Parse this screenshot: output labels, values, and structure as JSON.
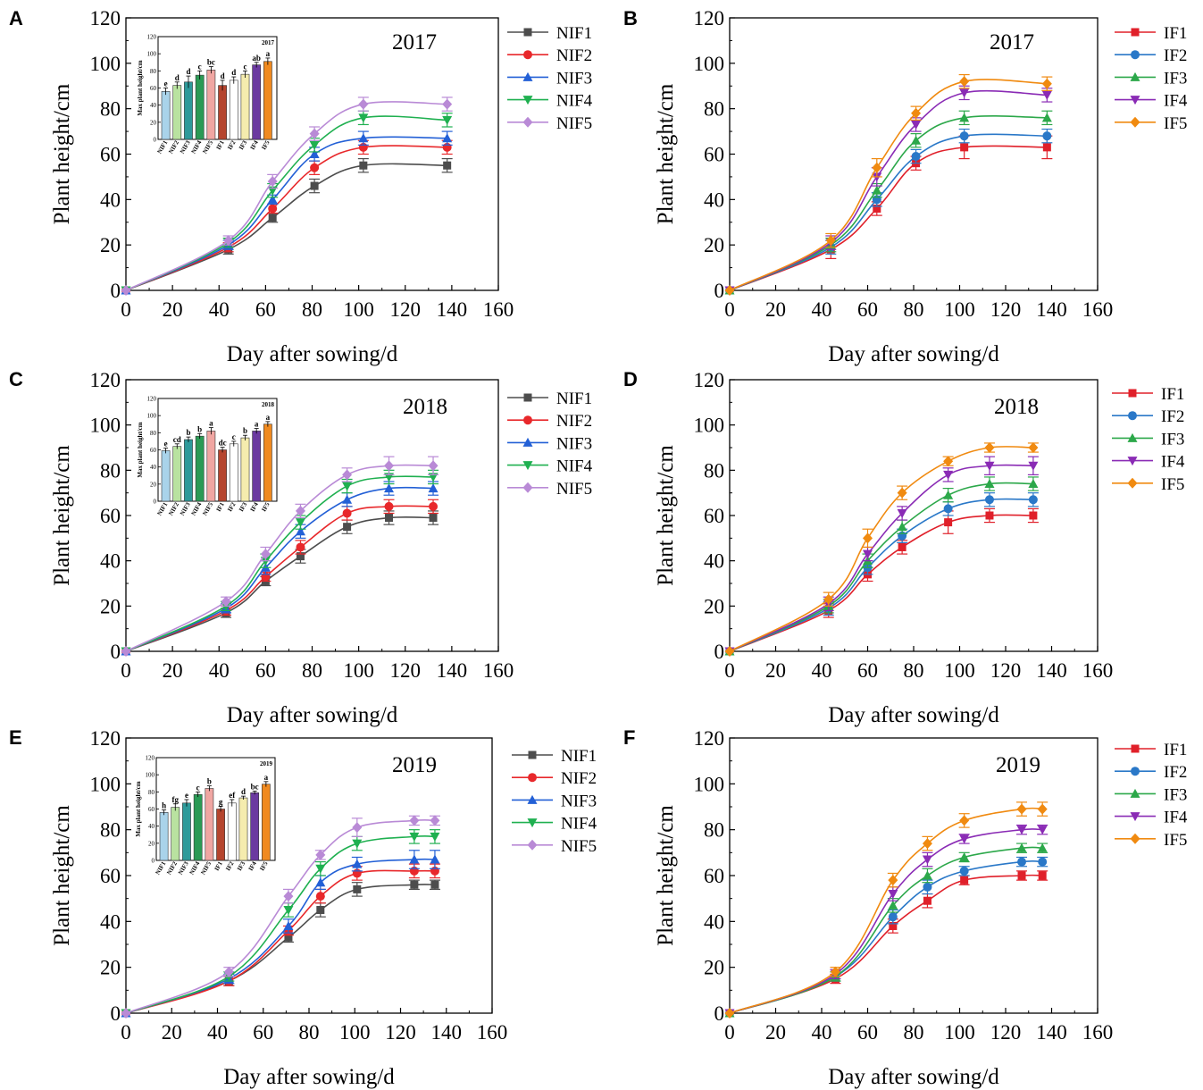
{
  "figure": {
    "panel_letters": [
      "A",
      "B",
      "C",
      "D",
      "E",
      "F"
    ]
  },
  "colors": {
    "NIF1": "#4d4d4d",
    "NIF2": "#e8282b",
    "NIF3": "#2360d6",
    "NIF4": "#1fb050",
    "NIF5": "#b98ad6",
    "IF1": "#e0202a",
    "IF2": "#2a78c8",
    "IF3": "#2ca84a",
    "IF4": "#8a2bb5",
    "IF5": "#f08a10",
    "inset_bars": [
      "#a9d3ea",
      "#b9e2a0",
      "#2e9a9a",
      "#2a9a55",
      "#f0a6a2",
      "#b5452e",
      "#ffffff",
      "#f5ecae",
      "#6b3aa0",
      "#f08a20"
    ]
  },
  "chart_data": [
    {
      "panel": "A",
      "type": "line",
      "title": "2017",
      "xlabel": "Day after sowing/d",
      "ylabel": "Plant height/cm",
      "xlim": [
        0,
        160
      ],
      "ylim": [
        0,
        120
      ],
      "xticks": [
        "0",
        "20",
        "40",
        "60",
        "80",
        "100",
        "120",
        "140",
        "160"
      ],
      "yticks": [
        "0",
        "20",
        "40",
        "60",
        "80",
        "100",
        "120"
      ],
      "x": [
        0,
        44,
        63,
        81,
        102,
        138
      ],
      "series": [
        {
          "name": "NIF1",
          "marker": "square",
          "values": [
            0,
            18,
            32,
            46,
            55,
            55
          ],
          "errors": [
            0,
            2,
            2,
            3,
            3,
            3
          ]
        },
        {
          "name": "NIF2",
          "marker": "circle",
          "values": [
            0,
            19,
            36,
            54,
            63,
            63
          ],
          "errors": [
            0,
            2,
            2,
            3,
            3,
            3
          ]
        },
        {
          "name": "NIF3",
          "marker": "triangle-up",
          "values": [
            0,
            20,
            40,
            60,
            67,
            67
          ],
          "errors": [
            0,
            2,
            2,
            3,
            3,
            3
          ]
        },
        {
          "name": "NIF4",
          "marker": "triangle-down",
          "values": [
            0,
            21,
            44,
            64,
            76,
            75
          ],
          "errors": [
            0,
            2,
            3,
            3,
            3,
            3
          ]
        },
        {
          "name": "NIF5",
          "marker": "diamond",
          "values": [
            0,
            22,
            48,
            69,
            82,
            82
          ],
          "errors": [
            0,
            2,
            3,
            3,
            3,
            3
          ]
        }
      ],
      "inset": {
        "title": "2017",
        "ylabel": "Max plant height/cm",
        "ylim": [
          0,
          120
        ],
        "yticks": [
          "0",
          "20",
          "40",
          "60",
          "80",
          "100",
          "120"
        ],
        "categories": [
          "NIF1",
          "NIF2",
          "NIF3",
          "NIF4",
          "NIF5",
          "IF1",
          "IF2",
          "IF3",
          "IF4",
          "IF5"
        ],
        "values": [
          56,
          63,
          67,
          75,
          81,
          63,
          69,
          76,
          87,
          91
        ],
        "errors": [
          4,
          4,
          7,
          5,
          4,
          6,
          4,
          4,
          3,
          4
        ],
        "letters": [
          "e",
          "d",
          "d",
          "c",
          "bc",
          "d",
          "d",
          "c",
          "ab",
          "a"
        ]
      }
    },
    {
      "panel": "B",
      "type": "line",
      "title": "2017",
      "xlabel": "Day after sowing/d",
      "ylabel": "Plant height/cm",
      "xlim": [
        0,
        160
      ],
      "ylim": [
        0,
        120
      ],
      "xticks": [
        "0",
        "20",
        "40",
        "60",
        "80",
        "100",
        "120",
        "140",
        "160"
      ],
      "yticks": [
        "0",
        "20",
        "40",
        "60",
        "80",
        "100",
        "120"
      ],
      "x": [
        0,
        44,
        64,
        81,
        102,
        138
      ],
      "series": [
        {
          "name": "IF1",
          "marker": "square",
          "values": [
            0,
            18,
            36,
            56,
            63,
            63
          ],
          "errors": [
            0,
            4,
            3,
            3,
            5,
            5
          ]
        },
        {
          "name": "IF2",
          "marker": "circle",
          "values": [
            0,
            19,
            40,
            59,
            68,
            68
          ],
          "errors": [
            0,
            3,
            3,
            3,
            3,
            3
          ]
        },
        {
          "name": "IF3",
          "marker": "triangle-up",
          "values": [
            0,
            20,
            44,
            66,
            76,
            76
          ],
          "errors": [
            0,
            3,
            3,
            3,
            3,
            3
          ]
        },
        {
          "name": "IF4",
          "marker": "triangle-down",
          "values": [
            0,
            21,
            50,
            73,
            87,
            86
          ],
          "errors": [
            0,
            3,
            4,
            3,
            3,
            3
          ]
        },
        {
          "name": "IF5",
          "marker": "diamond",
          "values": [
            0,
            22,
            54,
            78,
            92,
            91
          ],
          "errors": [
            0,
            3,
            4,
            3,
            3,
            3
          ]
        }
      ]
    },
    {
      "panel": "C",
      "type": "line",
      "title": "2018",
      "xlabel": "Day after sowing/d",
      "ylabel": "Plant height/cm",
      "xlim": [
        0,
        160
      ],
      "ylim": [
        0,
        120
      ],
      "xticks": [
        "0",
        "20",
        "40",
        "60",
        "80",
        "100",
        "120",
        "140",
        "160"
      ],
      "yticks": [
        "0",
        "20",
        "40",
        "60",
        "80",
        "100",
        "120"
      ],
      "x": [
        0,
        43,
        60,
        75,
        95,
        113,
        132
      ],
      "series": [
        {
          "name": "NIF1",
          "marker": "square",
          "values": [
            0,
            17,
            31,
            42,
            55,
            59,
            59
          ],
          "errors": [
            0,
            2,
            2,
            3,
            3,
            3,
            3
          ]
        },
        {
          "name": "NIF2",
          "marker": "circle",
          "values": [
            0,
            18,
            33,
            46,
            61,
            64,
            64
          ],
          "errors": [
            0,
            2,
            2,
            3,
            3,
            3,
            3
          ]
        },
        {
          "name": "NIF3",
          "marker": "triangle-up",
          "values": [
            0,
            19,
            37,
            53,
            67,
            72,
            72
          ],
          "errors": [
            0,
            2,
            3,
            3,
            3,
            3,
            3
          ]
        },
        {
          "name": "NIF4",
          "marker": "triangle-down",
          "values": [
            0,
            20,
            40,
            57,
            73,
            77,
            77
          ],
          "errors": [
            0,
            2,
            3,
            3,
            3,
            3,
            3
          ]
        },
        {
          "name": "NIF5",
          "marker": "diamond",
          "values": [
            0,
            22,
            43,
            62,
            78,
            82,
            82
          ],
          "errors": [
            0,
            2,
            3,
            3,
            3,
            4,
            4
          ]
        }
      ],
      "inset": {
        "title": "2018",
        "ylabel": "Max plant height/cm",
        "ylim": [
          0,
          120
        ],
        "yticks": [
          "0",
          "20",
          "40",
          "60",
          "80",
          "100",
          "120"
        ],
        "categories": [
          "NIF1",
          "NIF2",
          "NIF3",
          "NIF4",
          "NIF5",
          "IF1",
          "IF2",
          "IF3",
          "IF4",
          "IF5"
        ],
        "values": [
          59,
          64,
          72,
          76,
          82,
          60,
          67,
          74,
          82,
          90
        ],
        "errors": [
          3,
          3,
          3,
          3,
          4,
          3,
          3,
          3,
          3,
          3
        ],
        "letters": [
          "e",
          "cd",
          "b",
          "b",
          "a",
          "dc",
          "c",
          "b",
          "a",
          "a"
        ]
      }
    },
    {
      "panel": "D",
      "type": "line",
      "title": "2018",
      "xlabel": "Day after sowing/d",
      "ylabel": "Plant height/cm",
      "xlim": [
        0,
        160
      ],
      "ylim": [
        0,
        120
      ],
      "xticks": [
        "0",
        "20",
        "40",
        "60",
        "80",
        "100",
        "120",
        "140",
        "160"
      ],
      "yticks": [
        "0",
        "20",
        "40",
        "60",
        "80",
        "100",
        "120"
      ],
      "x": [
        0,
        43,
        60,
        75,
        95,
        113,
        132
      ],
      "series": [
        {
          "name": "IF1",
          "marker": "square",
          "values": [
            0,
            18,
            34,
            46,
            57,
            60,
            60
          ],
          "errors": [
            0,
            3,
            3,
            3,
            5,
            3,
            3
          ]
        },
        {
          "name": "IF2",
          "marker": "circle",
          "values": [
            0,
            19,
            37,
            51,
            63,
            67,
            67
          ],
          "errors": [
            0,
            3,
            3,
            3,
            3,
            3,
            3
          ]
        },
        {
          "name": "IF3",
          "marker": "triangle-up",
          "values": [
            0,
            20,
            40,
            55,
            69,
            74,
            74
          ],
          "errors": [
            0,
            3,
            3,
            3,
            3,
            3,
            3
          ]
        },
        {
          "name": "IF4",
          "marker": "triangle-down",
          "values": [
            0,
            21,
            43,
            61,
            78,
            82,
            82
          ],
          "errors": [
            0,
            3,
            3,
            3,
            3,
            4,
            4
          ]
        },
        {
          "name": "IF5",
          "marker": "diamond",
          "values": [
            0,
            23,
            50,
            70,
            84,
            90,
            90
          ],
          "errors": [
            0,
            3,
            4,
            3,
            2,
            2,
            2
          ]
        }
      ]
    },
    {
      "panel": "E",
      "type": "line",
      "title": "2019",
      "xlabel": "Day after sowing/d",
      "ylabel": "Plant height/cm",
      "xlim": [
        0,
        160
      ],
      "ylim": [
        0,
        120
      ],
      "xticks": [
        "0",
        "20",
        "40",
        "60",
        "80",
        "100",
        "120",
        "140",
        "160"
      ],
      "yticks": [
        "0",
        "20",
        "40",
        "60",
        "80",
        "100",
        "120"
      ],
      "x": [
        0,
        45,
        71,
        85,
        101,
        126,
        135
      ],
      "series": [
        {
          "name": "NIF1",
          "marker": "square",
          "values": [
            0,
            14,
            33,
            45,
            54,
            56,
            56
          ],
          "errors": [
            0,
            2,
            2,
            3,
            3,
            2,
            2
          ]
        },
        {
          "name": "NIF2",
          "marker": "circle",
          "values": [
            0,
            14,
            36,
            51,
            61,
            62,
            62
          ],
          "errors": [
            0,
            2,
            2,
            3,
            3,
            3,
            3
          ]
        },
        {
          "name": "NIF3",
          "marker": "triangle-up",
          "values": [
            0,
            15,
            38,
            57,
            65,
            67,
            67
          ],
          "errors": [
            0,
            2,
            3,
            3,
            3,
            4,
            4
          ]
        },
        {
          "name": "NIF4",
          "marker": "triangle-down",
          "values": [
            0,
            16,
            45,
            63,
            74,
            77,
            77
          ],
          "errors": [
            0,
            2,
            3,
            3,
            3,
            3,
            3
          ]
        },
        {
          "name": "NIF5",
          "marker": "diamond",
          "values": [
            0,
            18,
            51,
            69,
            81,
            84,
            84
          ],
          "errors": [
            0,
            2,
            3,
            2,
            4,
            2,
            2
          ]
        }
      ],
      "inset": {
        "title": "2019",
        "ylabel": "Max plant height/cm",
        "ylim": [
          0,
          120
        ],
        "yticks": [
          "0",
          "20",
          "40",
          "60",
          "80",
          "100",
          "120"
        ],
        "categories": [
          "NIF1",
          "NIF2",
          "NIF3",
          "NIF4",
          "NIF5",
          "IF1",
          "IF2",
          "IF3",
          "IF4",
          "IF5"
        ],
        "values": [
          56,
          62,
          67,
          77,
          84,
          60,
          67,
          73,
          79,
          89
        ],
        "errors": [
          3,
          4,
          4,
          3,
          3,
          3,
          4,
          2,
          2,
          3
        ],
        "letters": [
          "h",
          "fg",
          "e",
          "c",
          "b",
          "g",
          "ef",
          "d",
          "bc",
          "a"
        ]
      }
    },
    {
      "panel": "F",
      "type": "line",
      "title": "2019",
      "xlabel": "Day after sowing/d",
      "ylabel": "Plant height/cm",
      "xlim": [
        0,
        160
      ],
      "ylim": [
        0,
        120
      ],
      "xticks": [
        "0",
        "20",
        "40",
        "60",
        "80",
        "100",
        "120",
        "140",
        "160"
      ],
      "yticks": [
        "0",
        "20",
        "40",
        "60",
        "80",
        "100",
        "120"
      ],
      "x": [
        0,
        46,
        71,
        86,
        102,
        127,
        136
      ],
      "series": [
        {
          "name": "IF1",
          "marker": "square",
          "values": [
            0,
            15,
            38,
            49,
            58,
            60,
            60
          ],
          "errors": [
            0,
            2,
            3,
            3,
            2,
            2,
            2
          ]
        },
        {
          "name": "IF2",
          "marker": "circle",
          "values": [
            0,
            16,
            42,
            55,
            62,
            66,
            66
          ],
          "errors": [
            0,
            2,
            3,
            3,
            2,
            2,
            2
          ]
        },
        {
          "name": "IF3",
          "marker": "triangle-up",
          "values": [
            0,
            16,
            47,
            60,
            68,
            72,
            72
          ],
          "errors": [
            0,
            2,
            3,
            3,
            2,
            2,
            2
          ]
        },
        {
          "name": "IF4",
          "marker": "triangle-down",
          "values": [
            0,
            17,
            52,
            67,
            76,
            80,
            80
          ],
          "errors": [
            0,
            2,
            3,
            3,
            2,
            2,
            2
          ]
        },
        {
          "name": "IF5",
          "marker": "diamond",
          "values": [
            0,
            18,
            58,
            74,
            84,
            89,
            89
          ],
          "errors": [
            0,
            2,
            3,
            3,
            3,
            3,
            3
          ]
        }
      ]
    }
  ]
}
